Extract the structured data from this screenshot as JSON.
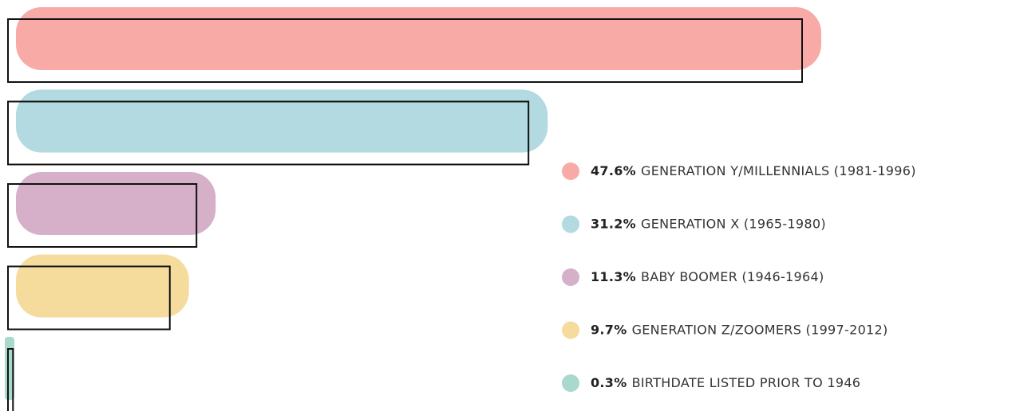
{
  "chart_data": {
    "type": "bar",
    "categories": [
      "GENERATION Y/MILLENNIALS (1981-1996)",
      "GENERATION X (1965-1980)",
      "BABY BOOMER (1946-1964)",
      "GENERATION Z/ZOOMERS (1997-2012)",
      "BIRTHDATE LISTED PRIOR TO 1946"
    ],
    "values": [
      47.6,
      31.2,
      11.3,
      9.7,
      0.3
    ],
    "value_labels": [
      "47.6%",
      "31.2%",
      "11.3%",
      "9.7%",
      "0.3%"
    ],
    "colors": [
      "#f8aba6",
      "#b2dae0",
      "#d5b0c8",
      "#f5dc9c",
      "#a8d9cc"
    ]
  }
}
